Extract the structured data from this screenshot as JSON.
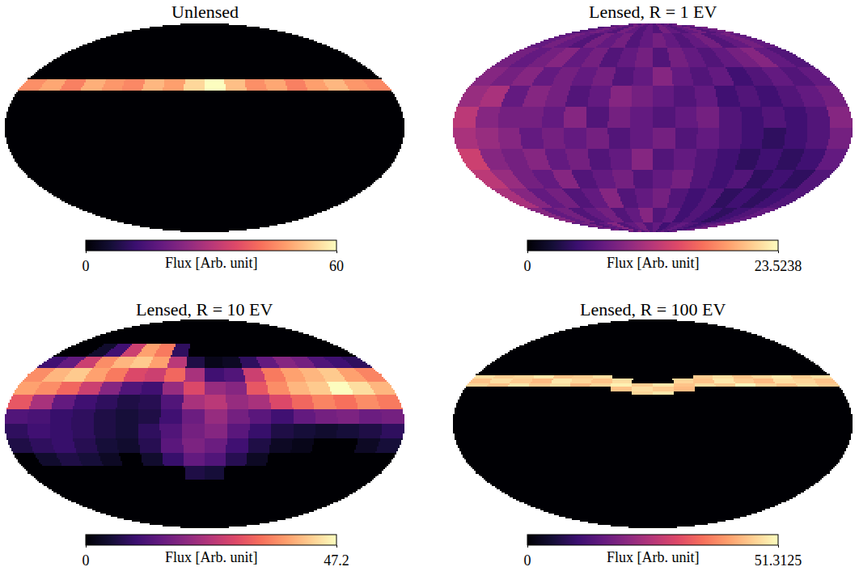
{
  "chart_data": [
    {
      "type": "heatmap",
      "title": "Unlensed",
      "lon_edges": [
        -180,
        -160,
        -140,
        -120,
        -100,
        -80,
        -60,
        -40,
        -20,
        0,
        20,
        40,
        60,
        80,
        100,
        120,
        140,
        160,
        180
      ],
      "lat_edges": [
        -90,
        26,
        35,
        90
      ],
      "flux": [
        [
          0,
          0,
          0,
          0,
          0,
          0,
          0,
          0,
          0,
          0,
          0,
          0,
          0,
          0,
          0,
          0,
          0,
          0
        ],
        [
          46,
          49,
          44,
          50,
          47,
          45,
          51,
          48,
          55,
          60,
          52,
          46,
          49,
          44,
          48,
          51,
          47,
          45
        ],
        [
          0,
          0,
          0,
          0,
          0,
          0,
          0,
          0,
          0,
          0,
          0,
          0,
          0,
          0,
          0,
          0,
          0,
          0
        ]
      ],
      "colorbar": {
        "label": "Flux [Arb. unit]",
        "range": [
          0,
          60
        ],
        "ticks": [
          0,
          60
        ]
      }
    },
    {
      "type": "heatmap",
      "title": "Lensed, R = 1 EV",
      "lon_edges": [
        -180,
        -160,
        -140,
        -120,
        -100,
        -80,
        -60,
        -40,
        -20,
        0,
        20,
        40,
        60,
        80,
        100,
        120,
        140,
        160,
        180
      ],
      "lat_edges": [
        -90,
        -75,
        -60,
        -45,
        -30,
        -15,
        0,
        15,
        30,
        45,
        60,
        75,
        90
      ],
      "flux": [
        [
          7,
          8,
          6,
          7,
          9,
          6,
          7,
          8,
          6,
          7,
          5,
          6,
          7,
          6,
          5,
          6,
          7,
          8
        ],
        [
          9,
          7,
          8,
          6,
          7,
          8,
          6,
          7,
          9,
          6,
          7,
          5,
          6,
          5,
          4,
          5,
          6,
          7
        ],
        [
          11,
          9,
          7,
          8,
          6,
          7,
          9,
          6,
          7,
          8,
          6,
          5,
          6,
          4,
          5,
          4,
          5,
          6
        ],
        [
          12,
          10,
          8,
          7,
          9,
          6,
          7,
          8,
          6,
          7,
          8,
          6,
          5,
          6,
          4,
          5,
          4,
          6
        ],
        [
          13,
          9,
          8,
          9,
          7,
          8,
          6,
          7,
          9,
          6,
          7,
          6,
          5,
          4,
          5,
          4,
          5,
          7
        ],
        [
          11,
          10,
          9,
          7,
          8,
          7,
          8,
          6,
          7,
          8,
          6,
          7,
          6,
          5,
          4,
          5,
          6,
          8
        ],
        [
          12,
          9,
          8,
          8,
          7,
          9,
          6,
          8,
          7,
          6,
          7,
          8,
          6,
          5,
          6,
          5,
          6,
          9
        ],
        [
          10,
          11,
          7,
          9,
          8,
          6,
          7,
          9,
          8,
          7,
          6,
          7,
          5,
          6,
          5,
          6,
          7,
          8
        ],
        [
          9,
          8,
          9,
          7,
          8,
          7,
          8,
          6,
          7,
          9,
          7,
          6,
          7,
          5,
          6,
          7,
          6,
          7
        ],
        [
          8,
          7,
          8,
          9,
          7,
          8,
          6,
          7,
          8,
          6,
          8,
          7,
          6,
          7,
          8,
          9,
          7,
          6
        ],
        [
          7,
          8,
          7,
          6,
          8,
          7,
          8,
          6,
          7,
          8,
          7,
          6,
          7,
          8,
          6,
          7,
          8,
          7
        ],
        [
          6,
          7,
          8,
          7,
          6,
          8,
          7,
          6,
          7,
          6,
          8,
          7,
          6,
          7,
          8,
          6,
          7,
          8
        ]
      ],
      "colorbar": {
        "label": "Flux [Arb. unit]",
        "range": [
          0,
          23.5238
        ],
        "ticks": [
          0,
          23.5238
        ]
      }
    },
    {
      "type": "heatmap",
      "title": "Lensed, R = 10 EV",
      "lon_edges": [
        -180,
        -160,
        -140,
        -120,
        -100,
        -80,
        -60,
        -40,
        -20,
        0,
        20,
        40,
        60,
        80,
        100,
        120,
        140,
        160,
        180
      ],
      "lat_edges": [
        -90,
        -50,
        -40,
        -30,
        -20,
        -10,
        0,
        10,
        20,
        30,
        40,
        50,
        60,
        90
      ],
      "flux": [
        [
          0,
          0,
          0,
          0,
          0,
          0,
          0,
          0,
          0,
          0,
          0,
          0,
          0,
          0,
          0,
          0,
          0,
          0
        ],
        [
          0,
          0,
          0,
          0,
          0,
          0,
          0,
          0,
          0,
          0,
          0,
          0,
          0,
          0,
          0,
          0,
          0,
          0
        ],
        [
          0,
          0,
          0,
          0,
          0,
          0,
          0,
          0,
          6,
          5,
          0,
          0,
          0,
          0,
          0,
          0,
          0,
          0
        ],
        [
          0,
          4,
          6,
          5,
          3,
          0,
          4,
          9,
          14,
          12,
          7,
          3,
          0,
          0,
          0,
          0,
          0,
          0
        ],
        [
          6,
          8,
          9,
          7,
          5,
          4,
          7,
          13,
          17,
          15,
          10,
          6,
          3,
          2,
          0,
          0,
          3,
          5
        ],
        [
          8,
          10,
          9,
          8,
          6,
          5,
          8,
          12,
          16,
          18,
          13,
          9,
          6,
          5,
          4,
          5,
          6,
          8
        ],
        [
          12,
          11,
          9,
          8,
          6,
          5,
          6,
          10,
          15,
          20,
          16,
          13,
          10,
          14,
          16,
          17,
          15,
          16
        ],
        [
          30,
          22,
          14,
          10,
          8,
          6,
          7,
          12,
          22,
          24,
          20,
          22,
          28,
          32,
          35,
          33,
          36,
          34
        ],
        [
          38,
          36,
          32,
          26,
          18,
          12,
          10,
          20,
          28,
          20,
          18,
          30,
          36,
          40,
          42,
          47.2,
          44,
          40
        ],
        [
          36,
          40,
          42,
          38,
          34,
          28,
          26,
          32,
          22,
          10,
          12,
          26,
          34,
          38,
          40,
          42,
          38,
          35
        ],
        [
          10,
          14,
          26,
          36,
          40,
          42,
          38,
          24,
          6,
          2,
          3,
          8,
          14,
          18,
          16,
          12,
          10,
          8
        ],
        [
          0,
          0,
          4,
          10,
          26,
          38,
          34,
          8,
          0,
          0,
          0,
          0,
          0,
          0,
          0,
          0,
          0,
          0
        ],
        [
          0,
          0,
          0,
          0,
          0,
          0,
          0,
          0,
          0,
          0,
          0,
          0,
          0,
          0,
          0,
          0,
          0,
          0
        ]
      ],
      "colorbar": {
        "label": "Flux [Arb. unit]",
        "range": [
          0,
          47.2
        ],
        "ticks": [
          0,
          47.2
        ]
      }
    },
    {
      "type": "heatmap",
      "title": "Lensed, R = 100 EV",
      "lon_edges": [
        -180,
        -160,
        -140,
        -120,
        -100,
        -80,
        -60,
        -40,
        -20,
        0,
        20,
        40,
        60,
        80,
        100,
        120,
        140,
        160,
        180
      ],
      "lat_edges": [
        -90,
        17,
        20,
        23,
        26,
        29,
        32,
        35,
        38,
        90
      ],
      "flux": [
        [
          0,
          0,
          0,
          0,
          0,
          0,
          0,
          0,
          0,
          0,
          0,
          0,
          0,
          0,
          0,
          0,
          0,
          0
        ],
        [
          0,
          0,
          0,
          0,
          0,
          0,
          0,
          0,
          0,
          0,
          0,
          0,
          0,
          0,
          0,
          0,
          0,
          0
        ],
        [
          0,
          0,
          0,
          0,
          0,
          0,
          0,
          0,
          47,
          49,
          0,
          0,
          0,
          0,
          0,
          0,
          0,
          0
        ],
        [
          0,
          0,
          0,
          0,
          0,
          0,
          0,
          45,
          48,
          46,
          44,
          0,
          0,
          0,
          0,
          0,
          0,
          0
        ],
        [
          47,
          45,
          49,
          46,
          48,
          44,
          47,
          50,
          46,
          49,
          45,
          48,
          46,
          51,
          47,
          45,
          48,
          46
        ],
        [
          45,
          48,
          46,
          44,
          49,
          47,
          45,
          48,
          0,
          0,
          47,
          45,
          49,
          46,
          44,
          48,
          47,
          45
        ],
        [
          48,
          46,
          47,
          49,
          45,
          46,
          48,
          0,
          0,
          0,
          0,
          46,
          48,
          45,
          47,
          49,
          46,
          48
        ],
        [
          0,
          0,
          0,
          0,
          0,
          0,
          0,
          0,
          0,
          0,
          0,
          0,
          0,
          0,
          0,
          0,
          0,
          0
        ],
        [
          0,
          0,
          0,
          0,
          0,
          0,
          0,
          0,
          0,
          0,
          0,
          0,
          0,
          0,
          0,
          0,
          0,
          0
        ]
      ],
      "colorbar": {
        "label": "Flux [Arb. unit]",
        "range": [
          0,
          51.3125
        ],
        "ticks": [
          0,
          51.3125
        ]
      }
    }
  ]
}
